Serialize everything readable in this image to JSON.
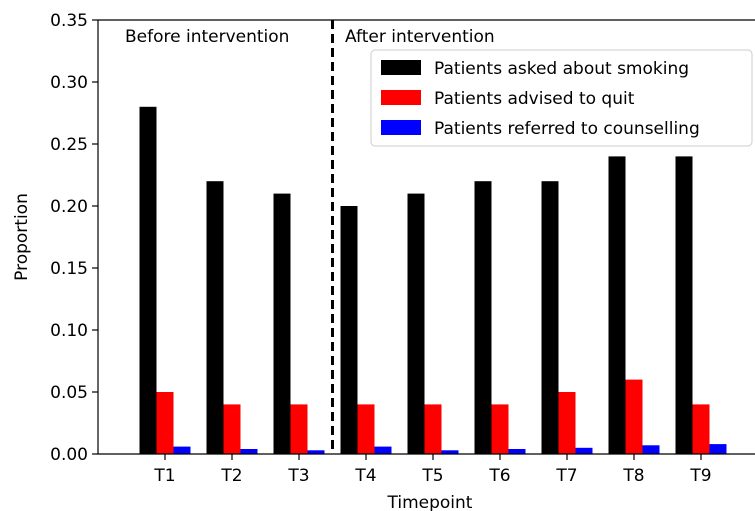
{
  "chart_data": {
    "type": "bar",
    "title": "",
    "xlabel": "Timepoint",
    "ylabel": "Proportion",
    "ylim": [
      0,
      0.35
    ],
    "yticks": [
      "0.00",
      "0.05",
      "0.10",
      "0.15",
      "0.20",
      "0.25",
      "0.30",
      "0.35"
    ],
    "categories": [
      "T1",
      "T2",
      "T3",
      "T4",
      "T5",
      "T6",
      "T7",
      "T8",
      "T9"
    ],
    "series": [
      {
        "name": "Patients asked about smoking",
        "color": "#000000",
        "values": [
          0.28,
          0.22,
          0.21,
          0.2,
          0.21,
          0.22,
          0.22,
          0.24,
          0.24
        ]
      },
      {
        "name": "Patients advised to quit",
        "color": "#ff0000",
        "values": [
          0.05,
          0.04,
          0.04,
          0.04,
          0.04,
          0.04,
          0.05,
          0.06,
          0.04
        ]
      },
      {
        "name": "Patients referred to counselling",
        "color": "#0000ff",
        "values": [
          0.006,
          0.004,
          0.003,
          0.006,
          0.003,
          0.004,
          0.005,
          0.007,
          0.008
        ]
      }
    ],
    "annotations": [
      "Before intervention",
      "After intervention"
    ],
    "intervention_after_category": "T3",
    "legend_position": "upper-right",
    "grid": false
  }
}
